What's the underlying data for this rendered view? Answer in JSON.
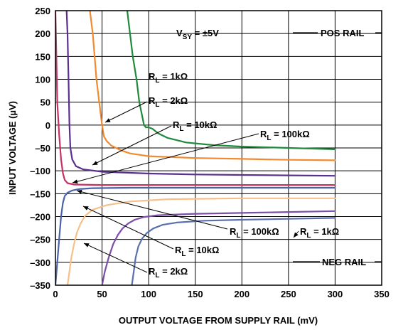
{
  "chart_data": {
    "type": "line",
    "xlabel": "OUTPUT VOLTAGE FROM SUPPLY RAIL (mV)",
    "ylabel": "INPUT VOLTAGE (µV)",
    "xlim": [
      0,
      350
    ],
    "ylim": [
      -350,
      250
    ],
    "xticks": [
      "0",
      "50",
      "100",
      "150",
      "200",
      "250",
      "300",
      "350"
    ],
    "yticks": [
      "250",
      "200",
      "150",
      "100",
      "50",
      "0",
      "–50",
      "–100",
      "–150",
      "–200",
      "–250",
      "–300",
      "–350"
    ],
    "grid": true,
    "annotations": {
      "vsy": "VSY = ±5V",
      "pos_rail": "POS RAIL",
      "neg_rail": "NEG RAIL"
    },
    "labels": [
      {
        "id": "pos-rl-1k",
        "text": "RL = 1kΩ"
      },
      {
        "id": "pos-rl-2k",
        "text": "RL = 2kΩ"
      },
      {
        "id": "pos-rl-10k",
        "text": "RL = 10kΩ"
      },
      {
        "id": "pos-rl-100k",
        "text": "RL = 100kΩ"
      },
      {
        "id": "neg-rl-100k",
        "text": "RL = 100kΩ"
      },
      {
        "id": "neg-rl-1k",
        "text": "RL = 1kΩ"
      },
      {
        "id": "neg-rl-10k",
        "text": "RL = 10kΩ"
      },
      {
        "id": "neg-rl-2k",
        "text": "RL = 2kΩ"
      }
    ],
    "series": [
      {
        "id": "pos-1k",
        "color": "#1e8a3c",
        "points": [
          [
            77,
            250
          ],
          [
            80,
            200
          ],
          [
            83,
            150
          ],
          [
            87,
            100
          ],
          [
            90,
            50
          ],
          [
            93,
            20
          ],
          [
            95,
            0
          ],
          [
            97,
            -5
          ],
          [
            100,
            -5
          ],
          [
            104,
            -8
          ],
          [
            110,
            -18
          ],
          [
            120,
            -28
          ],
          [
            140,
            -38
          ],
          [
            170,
            -44
          ],
          [
            200,
            -47
          ],
          [
            250,
            -50
          ],
          [
            300,
            -53
          ]
        ]
      },
      {
        "id": "pos-2k",
        "color": "#f28a30",
        "points": [
          [
            37,
            250
          ],
          [
            40,
            200
          ],
          [
            44,
            100
          ],
          [
            47,
            50
          ],
          [
            50,
            0
          ],
          [
            52,
            -25
          ],
          [
            55,
            -35
          ],
          [
            60,
            -45
          ],
          [
            70,
            -55
          ],
          [
            80,
            -62
          ],
          [
            100,
            -68
          ],
          [
            150,
            -72
          ],
          [
            200,
            -74
          ],
          [
            250,
            -76
          ],
          [
            300,
            -77
          ]
        ]
      },
      {
        "id": "pos-10k",
        "color": "#5b2f8e",
        "points": [
          [
            12,
            250
          ],
          [
            13,
            200
          ],
          [
            14,
            100
          ],
          [
            15,
            0
          ],
          [
            16,
            -50
          ],
          [
            18,
            -75
          ],
          [
            22,
            -90
          ],
          [
            30,
            -97
          ],
          [
            50,
            -102
          ],
          [
            100,
            -106
          ],
          [
            150,
            -108
          ],
          [
            200,
            -109
          ],
          [
            250,
            -110
          ],
          [
            300,
            -111
          ]
        ]
      },
      {
        "id": "pos-100k",
        "color": "#c7305f",
        "points": [
          [
            0,
            250
          ],
          [
            1,
            150
          ],
          [
            2,
            50
          ],
          [
            4,
            -20
          ],
          [
            6,
            -75
          ],
          [
            8,
            -105
          ],
          [
            10,
            -120
          ],
          [
            13,
            -127
          ],
          [
            20,
            -130
          ],
          [
            50,
            -131
          ],
          [
            100,
            -131
          ],
          [
            200,
            -131
          ],
          [
            300,
            -131
          ]
        ]
      },
      {
        "id": "neg-100k",
        "color": "#4a62a8",
        "points": [
          [
            0,
            -350
          ],
          [
            2,
            -300
          ],
          [
            4,
            -250
          ],
          [
            6,
            -200
          ],
          [
            8,
            -170
          ],
          [
            10,
            -155
          ],
          [
            13,
            -148
          ],
          [
            18,
            -143
          ],
          [
            25,
            -140
          ],
          [
            40,
            -138
          ],
          [
            80,
            -137
          ],
          [
            150,
            -137
          ],
          [
            300,
            -137
          ]
        ]
      },
      {
        "id": "neg-10k",
        "color": "#7b4fa8",
        "points": [
          [
            50,
            -350
          ],
          [
            53,
            -320
          ],
          [
            57,
            -290
          ],
          [
            62,
            -260
          ],
          [
            67,
            -240
          ],
          [
            72,
            -226
          ],
          [
            78,
            -215
          ],
          [
            85,
            -207
          ],
          [
            95,
            -201
          ],
          [
            110,
            -197
          ],
          [
            150,
            -194
          ],
          [
            200,
            -192
          ],
          [
            250,
            -190
          ],
          [
            300,
            -188
          ]
        ]
      },
      {
        "id": "neg-2k",
        "color": "#f7c08a",
        "points": [
          [
            13,
            -350
          ],
          [
            15,
            -320
          ],
          [
            17,
            -290
          ],
          [
            20,
            -260
          ],
          [
            23,
            -235
          ],
          [
            27,
            -215
          ],
          [
            32,
            -198
          ],
          [
            40,
            -185
          ],
          [
            55,
            -175
          ],
          [
            80,
            -167
          ],
          [
            120,
            -162
          ],
          [
            200,
            -160
          ],
          [
            300,
            -160
          ]
        ]
      },
      {
        "id": "neg-1k",
        "color": "#5a70ae",
        "points": [
          [
            82,
            -350
          ],
          [
            84,
            -320
          ],
          [
            86,
            -290
          ],
          [
            89,
            -265
          ],
          [
            93,
            -248
          ],
          [
            98,
            -236
          ],
          [
            105,
            -226
          ],
          [
            115,
            -218
          ],
          [
            130,
            -213
          ],
          [
            160,
            -209
          ],
          [
            200,
            -207
          ],
          [
            250,
            -205
          ],
          [
            300,
            -203
          ]
        ]
      }
    ]
  }
}
